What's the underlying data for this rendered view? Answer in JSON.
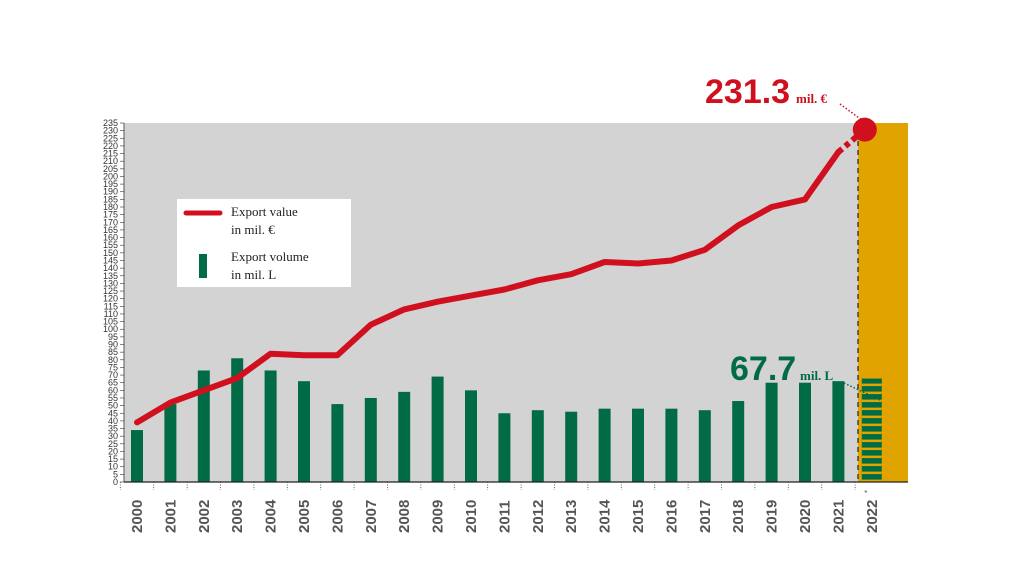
{
  "chart_data": {
    "type": "bar",
    "categories": [
      "2000",
      "2001",
      "2002",
      "2003",
      "2004",
      "2005",
      "2006",
      "2007",
      "2008",
      "2009",
      "2010",
      "2011",
      "2012",
      "2013",
      "2014",
      "2015",
      "2016",
      "2017",
      "2018",
      "2019",
      "2020",
      "2021",
      "2022*"
    ],
    "ylim": [
      0,
      235
    ],
    "ytick_step": 5,
    "series": [
      {
        "name": "Export value\nin mil. €",
        "type": "line",
        "color": "#d0101f",
        "values": [
          39,
          52,
          60,
          68,
          84,
          83,
          83,
          103,
          113,
          118,
          122,
          126,
          132,
          136,
          144,
          143,
          145,
          152,
          168,
          180,
          185,
          216,
          231.3
        ]
      },
      {
        "name": "Export volume\nin mil. L",
        "type": "bar",
        "color": "#006b45",
        "values": [
          34,
          51,
          73,
          81,
          73,
          66,
          51,
          55,
          59,
          69,
          60,
          45,
          47,
          46,
          48,
          48,
          48,
          47,
          53,
          65,
          65,
          66,
          67.7
        ]
      }
    ],
    "highlight": {
      "category": "2022*",
      "color": "#e0a300",
      "value_label": "231.3",
      "value_unit": "mil. €",
      "volume_label": "67.7",
      "volume_unit": "mil. L"
    },
    "legend": {
      "line_label_1": "Export value",
      "line_label_2": "in mil. €",
      "bar_label_1": "Export volume",
      "bar_label_2": "in mil. L"
    },
    "colors": {
      "plot_bg": "#d3d3d3",
      "highlight_bg": "#e0a300",
      "line": "#d0101f",
      "bar": "#006b45"
    },
    "grid": false,
    "legend_position": "upper-left"
  }
}
